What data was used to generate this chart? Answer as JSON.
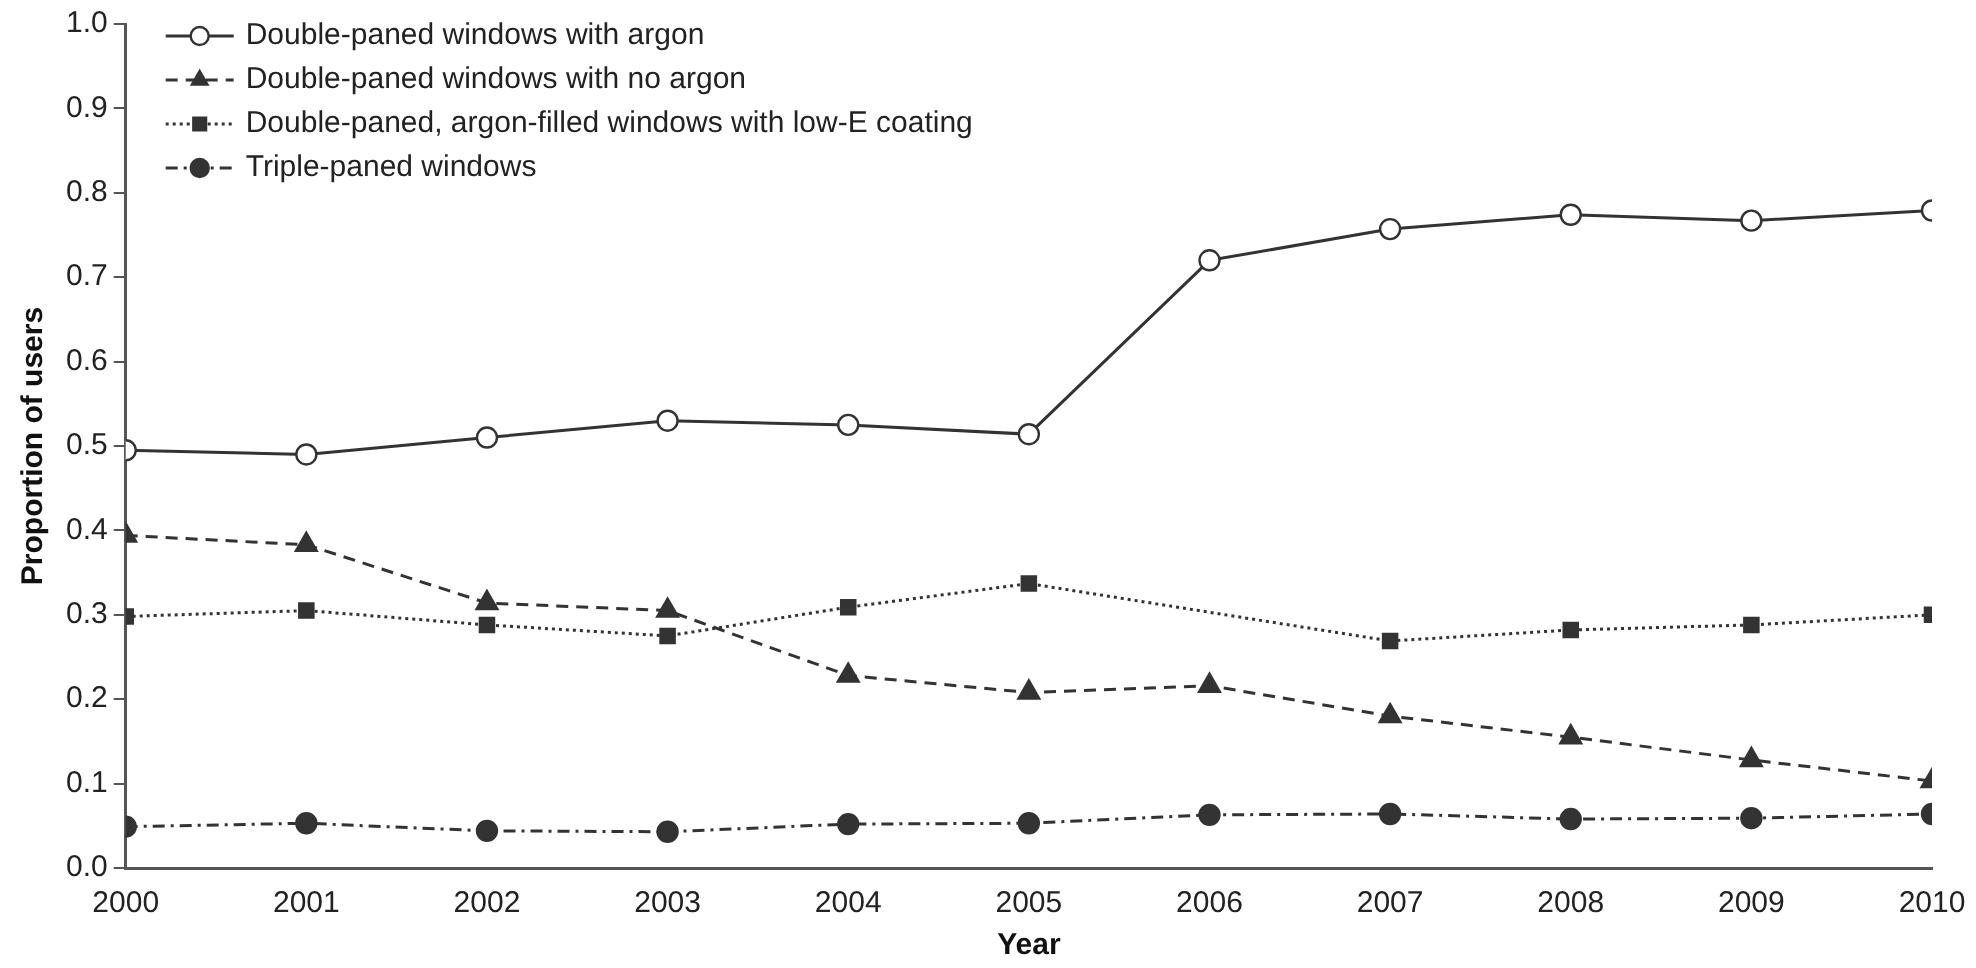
{
  "chart_data": {
    "type": "line",
    "xlabel": "Year",
    "ylabel": "Proportion of users",
    "x": [
      2000,
      2001,
      2002,
      2003,
      2004,
      2005,
      2006,
      2007,
      2008,
      2009,
      2010
    ],
    "xlim": [
      2000,
      2010
    ],
    "xticks": [
      2000,
      2001,
      2002,
      2003,
      2004,
      2005,
      2006,
      2007,
      2008,
      2009,
      2010
    ],
    "ylim": [
      0,
      1
    ],
    "yticks": [
      {
        "value": 0,
        "label": "0.0"
      },
      0.1,
      0.2,
      0.3,
      0.4,
      0.5,
      0.6,
      0.7,
      0.8,
      0.9,
      {
        "value": 1,
        "label": "1.0"
      }
    ],
    "grid": false,
    "legend": "top left",
    "series": [
      {
        "name": "Double-paned windows with argon",
        "color": "#333333",
        "marker": "circle",
        "line_style": "solid",
        "values": [
          0.495,
          0.49,
          0.51,
          0.53,
          0.525,
          0.514,
          0.72,
          0.757,
          0.774,
          0.767,
          0.779
        ]
      },
      {
        "name": "Double-paned windows with no argon",
        "color": "#333333",
        "marker": "triangle",
        "line_style": "dashed",
        "values": [
          0.394,
          0.383,
          0.314,
          0.305,
          0.228,
          0.208,
          0.216,
          0.18,
          0.155,
          0.128,
          0.103
        ]
      },
      {
        "name": "Double-paned, argon-filled windows with low-E coating",
        "color": "#333333",
        "marker": "square",
        "line_style": "dotted",
        "values": [
          0.298,
          0.305,
          0.288,
          0.275,
          0.309,
          0.337,
          null,
          0.269,
          0.282,
          0.288,
          0.3
        ]
      },
      {
        "name": "Triple-paned windows",
        "color": "#333333",
        "marker": "circle",
        "line_style": "dashdot",
        "values": [
          0.049,
          0.053,
          0.044,
          0.043,
          0.052,
          0.053,
          0.063,
          0.064,
          0.058,
          0.059,
          0.064
        ]
      }
    ]
  }
}
